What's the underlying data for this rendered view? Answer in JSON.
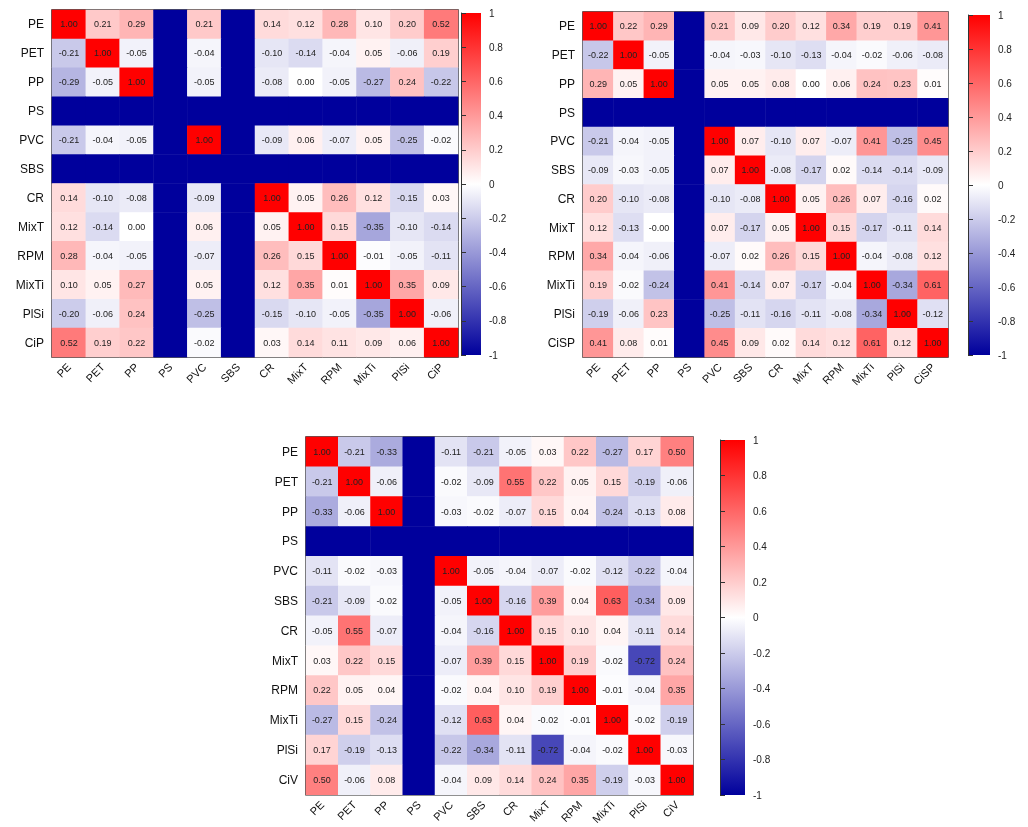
{
  "chart_data": [
    {
      "type": "heatmap",
      "categories": [
        "PE",
        "PET",
        "PP",
        "PS",
        "PVC",
        "SBS",
        "CR",
        "MixT",
        "RPM",
        "MixTi",
        "PlSi",
        "CiP"
      ],
      "y_categories": [
        "PE",
        "PET",
        "PP",
        "PS",
        "PVC",
        "SBS",
        "CR",
        "MixT",
        "RPM",
        "MixTi",
        "PlSi",
        "CiP"
      ],
      "cells": [
        [
          1.0,
          0.21,
          0.29,
          -1,
          0.21,
          -1,
          0.14,
          0.12,
          0.28,
          0.1,
          0.2,
          0.52
        ],
        [
          -0.21,
          1.0,
          -0.05,
          -1,
          -0.04,
          -1,
          -0.1,
          -0.14,
          -0.04,
          0.05,
          -0.06,
          0.19
        ],
        [
          -0.29,
          -0.05,
          1.0,
          -1,
          -0.05,
          -1,
          -0.08,
          0.0,
          -0.05,
          -0.27,
          0.24,
          -0.22
        ],
        [
          -1,
          -1,
          -1,
          -1,
          -1,
          -1,
          -1,
          -1,
          -1,
          -1,
          -1,
          -1
        ],
        [
          -0.21,
          -0.04,
          -0.05,
          -1,
          1.0,
          -1,
          -0.09,
          0.06,
          -0.07,
          0.05,
          -0.25,
          -0.02
        ],
        [
          -1,
          -1,
          -1,
          -1,
          -1,
          -1,
          -1,
          -1,
          -1,
          -1,
          -1,
          -1
        ],
        [
          0.14,
          -0.1,
          -0.08,
          -1,
          -0.09,
          -1,
          1.0,
          0.05,
          0.26,
          0.12,
          -0.15,
          0.03
        ],
        [
          0.12,
          -0.14,
          0.0,
          -1,
          0.06,
          -1,
          0.05,
          1.0,
          0.15,
          -0.35,
          -0.1,
          -0.14
        ],
        [
          0.28,
          -0.04,
          -0.05,
          -1,
          -0.07,
          -1,
          0.26,
          0.15,
          1.0,
          -0.01,
          -0.05,
          -0.11
        ],
        [
          0.1,
          0.05,
          0.27,
          -1,
          0.05,
          -1,
          0.12,
          0.35,
          0.01,
          1.0,
          0.35,
          0.09
        ],
        [
          -0.2,
          -0.06,
          0.24,
          -1,
          -0.25,
          -1,
          -0.15,
          -0.1,
          -0.05,
          -0.35,
          1.0,
          -0.06
        ],
        [
          0.52,
          0.19,
          0.22,
          -1,
          -0.02,
          -1,
          0.03,
          0.14,
          0.11,
          0.09,
          0.06,
          1.0
        ]
      ],
      "cell_labels": [
        [
          "1.00",
          "0.21",
          "0.29",
          null,
          "0.21",
          null,
          "0.14",
          "0.12",
          "0.28",
          "0.10",
          "0.20",
          "0.52"
        ],
        [
          "-0.21",
          "1.00",
          "-0.05",
          null,
          "-0.04",
          null,
          "-0.10",
          "-0.14",
          "-0.04",
          "0.05",
          "-0.06",
          "0.19"
        ],
        [
          "-0.29",
          "-0.05",
          "1.00",
          null,
          "-0.05",
          null,
          "-0.08",
          "0.00",
          "-0.05",
          "-0.27",
          "0.24",
          "-0.22"
        ],
        [
          null,
          null,
          null,
          null,
          null,
          null,
          null,
          null,
          null,
          null,
          null,
          null
        ],
        [
          "-0.21",
          "-0.04",
          "-0.05",
          null,
          "1.00",
          null,
          "-0.09",
          "0.06",
          "-0.07",
          "0.05",
          "-0.25",
          "-0.02"
        ],
        [
          null,
          null,
          null,
          null,
          null,
          null,
          null,
          null,
          null,
          null,
          null,
          null
        ],
        [
          "0.14",
          "-0.10",
          "-0.08",
          null,
          "-0.09",
          null,
          "1.00",
          "0.05",
          "0.26",
          "0.12",
          "-0.15",
          "0.03"
        ],
        [
          "0.12",
          "-0.14",
          "0.00",
          null,
          "0.06",
          null,
          "0.05",
          "1.00",
          "0.15",
          "-0.35",
          "-0.10",
          "-0.14"
        ],
        [
          "0.28",
          "-0.04",
          "-0.05",
          null,
          "-0.07",
          null,
          "0.26",
          "0.15",
          "1.00",
          "-0.01",
          "-0.05",
          "-0.11"
        ],
        [
          "0.10",
          "0.05",
          "0.27",
          null,
          "0.05",
          null,
          "0.12",
          "0.35",
          "0.01",
          "1.00",
          "0.35",
          "0.09"
        ],
        [
          "-0.20",
          "-0.06",
          "0.24",
          null,
          "-0.25",
          null,
          "-0.15",
          "-0.10",
          "-0.05",
          "-0.35",
          "1.00",
          "-0.06"
        ],
        [
          "0.52",
          "0.19",
          "0.22",
          null,
          "-0.02",
          null,
          "0.03",
          "0.14",
          "0.11",
          "0.09",
          "0.06",
          "1.00"
        ]
      ],
      "clim": [
        -1,
        1
      ],
      "cticks": [
        -1,
        -0.8,
        -0.6,
        -0.4,
        -0.2,
        0,
        0.2,
        0.4,
        0.6,
        0.8,
        1
      ]
    },
    {
      "type": "heatmap",
      "categories": [
        "PE",
        "PET",
        "PP",
        "PS",
        "PVC",
        "SBS",
        "CR",
        "MixT",
        "RPM",
        "MixTi",
        "PlSi",
        "CiSP"
      ],
      "y_categories": [
        "PE",
        "PET",
        "PP",
        "PS",
        "PVC",
        "SBS",
        "CR",
        "MixT",
        "RPM",
        "MixTi",
        "PlSi",
        "CiSP"
      ],
      "cells": [
        [
          1.0,
          0.22,
          0.29,
          -1,
          0.21,
          0.09,
          0.2,
          0.12,
          0.34,
          0.19,
          0.19,
          0.41
        ],
        [
          -0.22,
          1.0,
          -0.05,
          -1,
          -0.04,
          -0.03,
          -0.1,
          -0.13,
          -0.04,
          -0.02,
          -0.06,
          -0.08
        ],
        [
          0.29,
          0.05,
          1.0,
          -1,
          0.05,
          0.05,
          0.08,
          0.0,
          0.06,
          0.24,
          0.23,
          0.01
        ],
        [
          -1,
          -1,
          -1,
          -1,
          -1,
          -1,
          -1,
          -1,
          -1,
          -1,
          -1,
          -1
        ],
        [
          -0.21,
          -0.04,
          -0.05,
          -1,
          1.0,
          0.07,
          -0.1,
          0.07,
          -0.07,
          0.41,
          -0.25,
          0.45
        ],
        [
          -0.09,
          -0.03,
          -0.05,
          -1,
          0.07,
          1.0,
          -0.08,
          -0.17,
          0.02,
          -0.14,
          -0.14,
          -0.09
        ],
        [
          0.2,
          -0.1,
          -0.08,
          -1,
          -0.1,
          -0.08,
          1.0,
          0.05,
          0.26,
          0.07,
          -0.16,
          0.02
        ],
        [
          0.12,
          -0.13,
          0.0,
          -1,
          0.07,
          -0.17,
          0.05,
          1.0,
          0.15,
          -0.17,
          -0.11,
          0.14
        ],
        [
          0.34,
          -0.04,
          -0.06,
          -1,
          -0.07,
          0.02,
          0.26,
          0.15,
          1.0,
          -0.04,
          -0.08,
          0.12
        ],
        [
          0.19,
          -0.02,
          -0.24,
          -1,
          0.41,
          -0.14,
          0.07,
          -0.17,
          -0.04,
          1.0,
          -0.34,
          0.61
        ],
        [
          -0.19,
          -0.06,
          0.23,
          -1,
          -0.25,
          -0.11,
          -0.16,
          -0.11,
          -0.08,
          -0.34,
          1.0,
          -0.12
        ],
        [
          0.41,
          0.08,
          0.01,
          -1,
          0.45,
          0.09,
          0.02,
          0.14,
          0.12,
          0.61,
          0.12,
          1.0
        ]
      ],
      "cell_labels": [
        [
          "1.00",
          "0.22",
          "0.29",
          null,
          "0.21",
          "0.09",
          "0.20",
          "0.12",
          "0.34",
          "0.19",
          "0.19",
          "0.41"
        ],
        [
          "-0.22",
          "1.00",
          "-0.05",
          null,
          "-0.04",
          "-0.03",
          "-0.10",
          "-0.13",
          "-0.04",
          "-0.02",
          "-0.06",
          "-0.08"
        ],
        [
          "0.29",
          "0.05",
          "1.00",
          null,
          "0.05",
          "0.05",
          "0.08",
          "0.00",
          "0.06",
          "0.24",
          "0.23",
          "0.01"
        ],
        [
          null,
          null,
          null,
          null,
          null,
          null,
          null,
          null,
          null,
          null,
          null,
          null
        ],
        [
          "-0.21",
          "-0.04",
          "-0.05",
          null,
          "1.00",
          "0.07",
          "-0.10",
          "0.07",
          "-0.07",
          "0.41",
          "-0.25",
          "0.45"
        ],
        [
          "-0.09",
          "-0.03",
          "-0.05",
          null,
          "0.07",
          "1.00",
          "-0.08",
          "-0.17",
          "0.02",
          "-0.14",
          "-0.14",
          "-0.09"
        ],
        [
          "0.20",
          "-0.10",
          "-0.08",
          null,
          "-0.10",
          "-0.08",
          "1.00",
          "0.05",
          "0.26",
          "0.07",
          "-0.16",
          "0.02"
        ],
        [
          "0.12",
          "-0.13",
          "-0.00",
          null,
          "0.07",
          "-0.17",
          "0.05",
          "1.00",
          "0.15",
          "-0.17",
          "-0.11",
          "0.14"
        ],
        [
          "0.34",
          "-0.04",
          "-0.06",
          null,
          "-0.07",
          "0.02",
          "0.26",
          "0.15",
          "1.00",
          "-0.04",
          "-0.08",
          "0.12"
        ],
        [
          "0.19",
          "-0.02",
          "-0.24",
          null,
          "0.41",
          "-0.14",
          "0.07",
          "-0.17",
          "-0.04",
          "1.00",
          "-0.34",
          "0.61"
        ],
        [
          "-0.19",
          "-0.06",
          "0.23",
          null,
          "-0.25",
          "-0.11",
          "-0.16",
          "-0.11",
          "-0.08",
          "-0.34",
          "1.00",
          "-0.12"
        ],
        [
          "0.41",
          "0.08",
          "0.01",
          null,
          "0.45",
          "0.09",
          "0.02",
          "0.14",
          "0.12",
          "0.61",
          "0.12",
          "1.00"
        ]
      ],
      "clim": [
        -1,
        1
      ],
      "cticks": [
        -1,
        -0.8,
        -0.6,
        -0.4,
        -0.2,
        0,
        0.2,
        0.4,
        0.6,
        0.8,
        1
      ]
    },
    {
      "type": "heatmap",
      "categories": [
        "PE",
        "PET",
        "PP",
        "PS",
        "PVC",
        "SBS",
        "CR",
        "MixT",
        "RPM",
        "MixTi",
        "PlSi",
        "CiV"
      ],
      "y_categories": [
        "PE",
        "PET",
        "PP",
        "PS",
        "PVC",
        "SBS",
        "CR",
        "MixT",
        "RPM",
        "MixTi",
        "PlSi",
        "CiV"
      ],
      "cells": [
        [
          1.0,
          -0.21,
          -0.33,
          -1,
          -0.11,
          -0.21,
          -0.05,
          0.03,
          0.22,
          -0.27,
          0.17,
          0.5
        ],
        [
          -0.21,
          1.0,
          -0.06,
          -1,
          -0.02,
          -0.09,
          0.55,
          0.22,
          0.05,
          0.15,
          -0.19,
          -0.06
        ],
        [
          -0.33,
          -0.06,
          1.0,
          -1,
          -0.03,
          -0.02,
          -0.07,
          0.15,
          0.04,
          -0.24,
          -0.13,
          0.08
        ],
        [
          -1,
          -1,
          -1,
          -1,
          -1,
          -1,
          -1,
          -1,
          -1,
          -1,
          -1,
          -1
        ],
        [
          -0.11,
          -0.02,
          -0.03,
          -1,
          1.0,
          -0.05,
          -0.04,
          -0.07,
          -0.02,
          -0.12,
          -0.22,
          -0.04
        ],
        [
          -0.21,
          -0.09,
          -0.02,
          -1,
          -0.05,
          1.0,
          -0.16,
          0.39,
          0.04,
          0.63,
          -0.34,
          0.09
        ],
        [
          -0.05,
          0.55,
          -0.07,
          -1,
          -0.04,
          -0.16,
          1.0,
          0.15,
          0.1,
          0.04,
          -0.11,
          0.14
        ],
        [
          0.03,
          0.22,
          0.15,
          -1,
          -0.07,
          0.39,
          0.15,
          1.0,
          0.19,
          -0.02,
          -0.72,
          0.24
        ],
        [
          0.22,
          0.05,
          0.04,
          -1,
          -0.02,
          0.04,
          0.1,
          0.19,
          1.0,
          -0.01,
          -0.04,
          0.35
        ],
        [
          -0.27,
          0.15,
          -0.24,
          -1,
          -0.12,
          0.63,
          0.04,
          -0.02,
          -0.01,
          1.0,
          -0.02,
          -0.19
        ],
        [
          0.17,
          -0.19,
          -0.13,
          -1,
          -0.22,
          -0.34,
          -0.11,
          -0.72,
          -0.04,
          -0.02,
          1.0,
          -0.03
        ],
        [
          0.5,
          -0.06,
          0.08,
          -1,
          -0.04,
          0.09,
          0.14,
          0.24,
          0.35,
          -0.19,
          -0.03,
          1.0
        ]
      ],
      "cell_labels": [
        [
          "1.00",
          "-0.21",
          "-0.33",
          null,
          "-0.11",
          "-0.21",
          "-0.05",
          "0.03",
          "0.22",
          "-0.27",
          "0.17",
          "0.50"
        ],
        [
          "-0.21",
          "1.00",
          "-0.06",
          null,
          "-0.02",
          "-0.09",
          "0.55",
          "0.22",
          "0.05",
          "0.15",
          "-0.19",
          "-0.06"
        ],
        [
          "-0.33",
          "-0.06",
          "1.00",
          null,
          "-0.03",
          "-0.02",
          "-0.07",
          "0.15",
          "0.04",
          "-0.24",
          "-0.13",
          "0.08"
        ],
        [
          null,
          null,
          null,
          null,
          null,
          null,
          null,
          null,
          null,
          null,
          null,
          null
        ],
        [
          "-0.11",
          "-0.02",
          "-0.03",
          null,
          "1.00",
          "-0.05",
          "-0.04",
          "-0.07",
          "-0.02",
          "-0.12",
          "-0.22",
          "-0.04"
        ],
        [
          "-0.21",
          "-0.09",
          "-0.02",
          null,
          "-0.05",
          "1.00",
          "-0.16",
          "0.39",
          "0.04",
          "0.63",
          "-0.34",
          "0.09"
        ],
        [
          "-0.05",
          "0.55",
          "-0.07",
          null,
          "-0.04",
          "-0.16",
          "1.00",
          "0.15",
          "0.10",
          "0.04",
          "-0.11",
          "0.14"
        ],
        [
          "0.03",
          "0.22",
          "0.15",
          null,
          "-0.07",
          "0.39",
          "0.15",
          "1.00",
          "0.19",
          "-0.02",
          "-0.72",
          "0.24"
        ],
        [
          "0.22",
          "0.05",
          "0.04",
          null,
          "-0.02",
          "0.04",
          "0.10",
          "0.19",
          "1.00",
          "-0.01",
          "-0.04",
          "0.35"
        ],
        [
          "-0.27",
          "0.15",
          "-0.24",
          null,
          "-0.12",
          "0.63",
          "0.04",
          "-0.02",
          "-0.01",
          "1.00",
          "-0.02",
          "-0.19"
        ],
        [
          "0.17",
          "-0.19",
          "-0.13",
          null,
          "-0.22",
          "-0.34",
          "-0.11",
          "-0.72",
          "-0.04",
          "-0.02",
          "1.00",
          "-0.03"
        ],
        [
          "0.50",
          "-0.06",
          "0.08",
          null,
          "-0.04",
          "0.09",
          "0.14",
          "0.24",
          "0.35",
          "-0.19",
          "-0.03",
          "1.00"
        ]
      ],
      "clim": [
        -1,
        1
      ],
      "cticks": [
        -1,
        -0.8,
        -0.6,
        -0.4,
        -0.2,
        0,
        0.2,
        0.4,
        0.6,
        0.8,
        1
      ]
    }
  ]
}
